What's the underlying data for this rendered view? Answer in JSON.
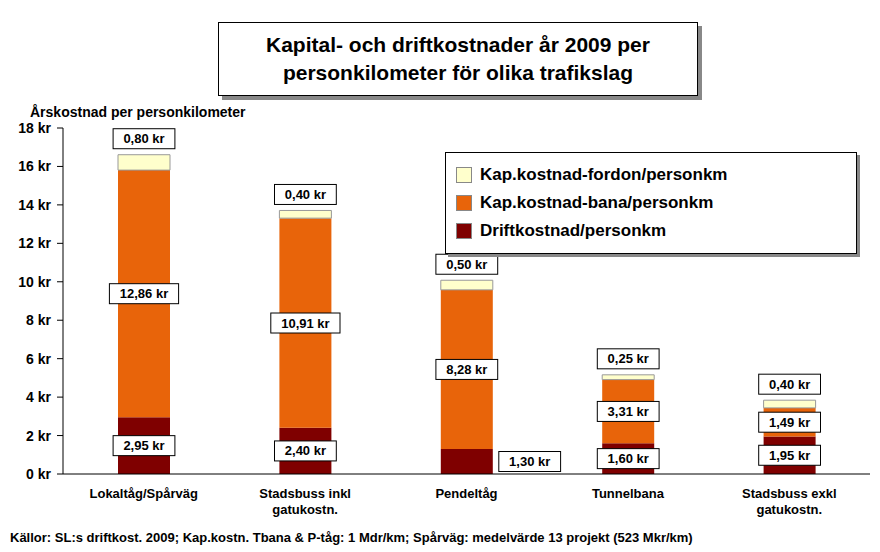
{
  "chart_data": {
    "type": "bar",
    "title": "Kapital- och driftkostnader år 2009 per personkilometer för olika trafikslag",
    "ylabel": "Årskostnad per personkilometer",
    "annotations": [
      "Källor: SL:s driftkost. 2009; Kap.kostn. Tbana & P-tåg: 1 Mdr/km; Spårväg: medelvärde 13 projekt (523 Mkr/km)"
    ],
    "categories": [
      "Lokaltåg/Spårväg",
      "Stadsbuss inkl gatukostn.",
      "Pendeltåg",
      "Tunnelbana",
      "Stadsbuss exkl gatukostn."
    ],
    "series": [
      {
        "name": "Driftkostnad/personkm",
        "color": "#7f0000",
        "values": [
          2.95,
          2.4,
          1.3,
          1.6,
          1.95
        ],
        "value_labels": [
          "2,95 kr",
          "2,40 kr",
          "1,30 kr",
          "1,60 kr",
          "1,95 kr"
        ]
      },
      {
        "name": "Kap.kostnad-bana/personkm",
        "color": "#e8640a",
        "values": [
          12.86,
          10.91,
          8.28,
          3.31,
          1.49
        ],
        "value_labels": [
          "12,86 kr",
          "10,91 kr",
          "8,28 kr",
          "3,31 kr",
          "1,49 kr"
        ]
      },
      {
        "name": "Kap.kostnad-fordon/personkm",
        "color": "#ffffcc",
        "values": [
          0.8,
          0.4,
          0.5,
          0.25,
          0.4
        ],
        "value_labels": [
          "0,80 kr",
          "0,40 kr",
          "0,50 kr",
          "0,25 kr",
          "0,40 kr"
        ]
      }
    ],
    "ylim": [
      0,
      18
    ],
    "yticks": [
      {
        "value": 0,
        "label": "0 kr"
      },
      {
        "value": 2,
        "label": "2 kr"
      },
      {
        "value": 4,
        "label": "4 kr"
      },
      {
        "value": 6,
        "label": "6 kr"
      },
      {
        "value": 8,
        "label": "8 kr"
      },
      {
        "value": 10,
        "label": "10 kr"
      },
      {
        "value": 12,
        "label": "12 kr"
      },
      {
        "value": 14,
        "label": "14 kr"
      },
      {
        "value": 16,
        "label": "16 kr"
      },
      {
        "value": 18,
        "label": "18 kr"
      }
    ],
    "stacked": true,
    "data_labels": true,
    "legend": "upper right",
    "grid": false
  }
}
